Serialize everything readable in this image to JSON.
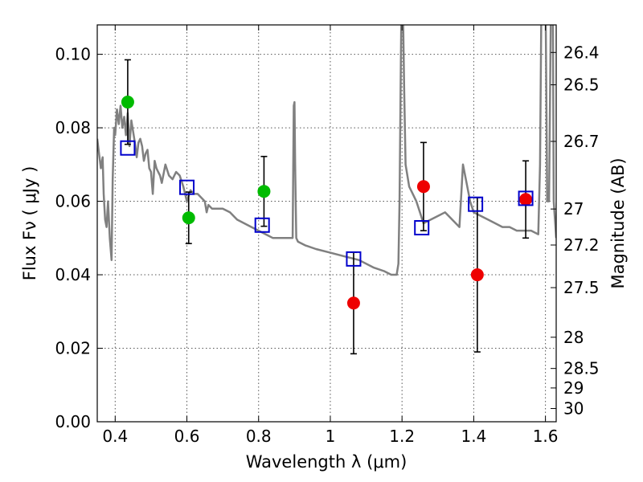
{
  "chart_data": {
    "type": "scatter",
    "xlabel": "Wavelength  λ (μm)",
    "ylabel": "Flux  Fν  ( μJy )",
    "ylabel_right": "Magnitude (AB)",
    "xlim": [
      0.35,
      1.63
    ],
    "ylim": [
      0.0,
      0.108
    ],
    "grid": true,
    "x_ticks": [
      {
        "value": 0.4,
        "label": "0.4"
      },
      {
        "value": 0.6,
        "label": "0.6"
      },
      {
        "value": 0.8,
        "label": "0.8"
      },
      {
        "value": 1.0,
        "label": "1"
      },
      {
        "value": 1.2,
        "label": "1.2"
      },
      {
        "value": 1.4,
        "label": "1.4"
      },
      {
        "value": 1.6,
        "label": "1.6"
      }
    ],
    "y_ticks": [
      {
        "value": 0.0,
        "label": "0.00"
      },
      {
        "value": 0.02,
        "label": "0.02"
      },
      {
        "value": 0.04,
        "label": "0.04"
      },
      {
        "value": 0.06,
        "label": "0.06"
      },
      {
        "value": 0.08,
        "label": "0.08"
      },
      {
        "value": 0.1,
        "label": "0.10"
      }
    ],
    "right_ticks": [
      {
        "label": "26.4",
        "flux": 0.1005
      },
      {
        "label": "26.5",
        "flux": 0.0917
      },
      {
        "label": "26.7",
        "flux": 0.0763
      },
      {
        "label": "27",
        "flux": 0.0579
      },
      {
        "label": "27.2",
        "flux": 0.0481
      },
      {
        "label": "27.5",
        "flux": 0.0365
      },
      {
        "label": "28",
        "flux": 0.023
      },
      {
        "label": "28.5",
        "flux": 0.0145
      },
      {
        "label": "29",
        "flux": 0.0092
      },
      {
        "label": "30",
        "flux": 0.0036
      }
    ],
    "colors": {
      "model": "#808080",
      "observed_green": "#00bb00",
      "observed_red": "#ee0000",
      "model_box": "#0000cc",
      "errorbar": "#000000"
    },
    "model_spectrum": {
      "x": [
        0.35,
        0.355,
        0.36,
        0.365,
        0.368,
        0.372,
        0.376,
        0.38,
        0.385,
        0.39,
        0.393,
        0.397,
        0.4,
        0.405,
        0.41,
        0.415,
        0.42,
        0.425,
        0.43,
        0.435,
        0.44,
        0.445,
        0.45,
        0.455,
        0.46,
        0.465,
        0.47,
        0.475,
        0.48,
        0.485,
        0.49,
        0.495,
        0.5,
        0.505,
        0.51,
        0.515,
        0.52,
        0.525,
        0.53,
        0.54,
        0.55,
        0.56,
        0.57,
        0.58,
        0.59,
        0.6,
        0.61,
        0.62,
        0.63,
        0.64,
        0.65,
        0.655,
        0.66,
        0.67,
        0.68,
        0.7,
        0.72,
        0.74,
        0.76,
        0.78,
        0.8,
        0.82,
        0.84,
        0.86,
        0.88,
        0.895,
        0.898,
        0.9,
        0.902,
        0.905,
        0.91,
        0.93,
        0.96,
        1.0,
        1.04,
        1.08,
        1.12,
        1.15,
        1.17,
        1.185,
        1.19,
        1.193,
        1.196,
        1.198,
        1.2,
        1.203,
        1.206,
        1.21,
        1.22,
        1.23,
        1.24,
        1.25,
        1.26,
        1.28,
        1.3,
        1.32,
        1.34,
        1.36,
        1.37,
        1.38,
        1.39,
        1.4,
        1.42,
        1.44,
        1.46,
        1.48,
        1.5,
        1.52,
        1.54,
        1.56,
        1.58,
        1.585,
        1.59,
        1.595,
        1.6,
        1.605,
        1.61,
        1.615,
        1.62,
        1.623,
        1.63
      ],
      "y": [
        0.077,
        0.073,
        0.069,
        0.072,
        0.062,
        0.055,
        0.053,
        0.06,
        0.05,
        0.044,
        0.066,
        0.08,
        0.078,
        0.085,
        0.081,
        0.086,
        0.08,
        0.083,
        0.078,
        0.084,
        0.075,
        0.082,
        0.079,
        0.076,
        0.072,
        0.076,
        0.077,
        0.075,
        0.071,
        0.073,
        0.074,
        0.069,
        0.068,
        0.062,
        0.071,
        0.069,
        0.068,
        0.067,
        0.065,
        0.07,
        0.067,
        0.066,
        0.068,
        0.067,
        0.064,
        0.06,
        0.063,
        0.062,
        0.062,
        0.061,
        0.06,
        0.057,
        0.059,
        0.058,
        0.058,
        0.058,
        0.057,
        0.055,
        0.054,
        0.053,
        0.052,
        0.051,
        0.05,
        0.05,
        0.05,
        0.05,
        0.086,
        0.087,
        0.07,
        0.05,
        0.049,
        0.048,
        0.047,
        0.046,
        0.045,
        0.044,
        0.042,
        0.041,
        0.04,
        0.04,
        0.043,
        0.06,
        0.09,
        0.11,
        0.125,
        0.11,
        0.09,
        0.07,
        0.064,
        0.062,
        0.06,
        0.057,
        0.054,
        0.055,
        0.056,
        0.057,
        0.055,
        0.053,
        0.07,
        0.065,
        0.06,
        0.057,
        0.056,
        0.055,
        0.054,
        0.053,
        0.053,
        0.052,
        0.052,
        0.052,
        0.051,
        0.07,
        0.13,
        0.13,
        0.12,
        0.06,
        0.06,
        0.11,
        0.13,
        0.06,
        0.05
      ]
    },
    "observed": [
      {
        "x": 0.435,
        "y": 0.087,
        "err": 0.0115,
        "color": "green"
      },
      {
        "x": 0.605,
        "y": 0.0555,
        "err": 0.007,
        "color": "green"
      },
      {
        "x": 0.815,
        "y": 0.0627,
        "err": 0.0095,
        "color": "green"
      },
      {
        "x": 1.065,
        "y": 0.0323,
        "err": 0.0138,
        "color": "red"
      },
      {
        "x": 1.26,
        "y": 0.064,
        "err": 0.012,
        "color": "red"
      },
      {
        "x": 1.41,
        "y": 0.04,
        "err": 0.021,
        "color": "red"
      },
      {
        "x": 1.545,
        "y": 0.0605,
        "err": 0.0105,
        "color": "red"
      }
    ],
    "model_photometry": [
      {
        "x": 0.435,
        "y": 0.0745
      },
      {
        "x": 0.6,
        "y": 0.0638
      },
      {
        "x": 0.81,
        "y": 0.0535
      },
      {
        "x": 1.065,
        "y": 0.0443
      },
      {
        "x": 1.255,
        "y": 0.0528
      },
      {
        "x": 1.405,
        "y": 0.0592
      },
      {
        "x": 1.545,
        "y": 0.0608
      }
    ]
  }
}
